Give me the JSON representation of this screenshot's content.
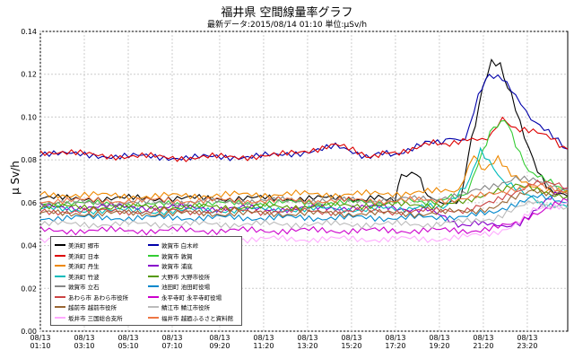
{
  "title": "福井県 空間線量率グラフ",
  "subtitle": "最新データ:2015/08/14 01:10 単位:μSv/h",
  "chart_data": {
    "type": "line",
    "title": "福井県 空間線量率グラフ",
    "ylabel": "μ Sv/h",
    "ylim": [
      0,
      0.14
    ],
    "yticks": [
      "0.00",
      "0.02",
      "0.04",
      "0.06",
      "0.08",
      "0.10",
      "0.12",
      "0.14"
    ],
    "x_ticks": [
      {
        "date": "08/13",
        "time": "01:10"
      },
      {
        "date": "08/13",
        "time": "03:10"
      },
      {
        "date": "08/13",
        "time": "05:10"
      },
      {
        "date": "08/13",
        "time": "07:10"
      },
      {
        "date": "08/13",
        "time": "09:20"
      },
      {
        "date": "08/13",
        "time": "11:20"
      },
      {
        "date": "08/13",
        "time": "13:20"
      },
      {
        "date": "08/13",
        "time": "15:20"
      },
      {
        "date": "08/13",
        "time": "17:20"
      },
      {
        "date": "08/13",
        "time": "19:20"
      },
      {
        "date": "08/13",
        "time": "21:20"
      },
      {
        "date": "08/13",
        "time": "23:20"
      }
    ],
    "x_hours": [
      1.17,
      3.17,
      5.17,
      7.17,
      9.33,
      11.33,
      13.33,
      15.33,
      17.33,
      19.33,
      21.33,
      23.33
    ],
    "x_range_hours": [
      1.17,
      25.17
    ],
    "grid": true,
    "legend_position": "bottom-left",
    "series": [
      {
        "name": "美浜町 郷市",
        "color": "#000000",
        "points": [
          [
            1.17,
            0.062
          ],
          [
            4,
            0.062
          ],
          [
            8,
            0.062
          ],
          [
            12,
            0.062
          ],
          [
            16,
            0.062
          ],
          [
            17.3,
            0.062
          ],
          [
            17.6,
            0.072
          ],
          [
            18.3,
            0.073
          ],
          [
            18.8,
            0.064
          ],
          [
            19.5,
            0.06
          ],
          [
            20.3,
            0.062
          ],
          [
            20.8,
            0.09
          ],
          [
            21.3,
            0.113
          ],
          [
            21.7,
            0.125
          ],
          [
            22.1,
            0.124
          ],
          [
            22.6,
            0.11
          ],
          [
            23.2,
            0.09
          ],
          [
            23.8,
            0.075
          ],
          [
            24.4,
            0.066
          ],
          [
            25.17,
            0.063
          ]
        ]
      },
      {
        "name": "敦賀市 白木峠",
        "color": "#0000aa",
        "points": [
          [
            1.17,
            0.083
          ],
          [
            4,
            0.082
          ],
          [
            8,
            0.081
          ],
          [
            12,
            0.082
          ],
          [
            14.6,
            0.086
          ],
          [
            16,
            0.082
          ],
          [
            17.3,
            0.083
          ],
          [
            18.5,
            0.087
          ],
          [
            19.8,
            0.09
          ],
          [
            20.5,
            0.09
          ],
          [
            21.1,
            0.11
          ],
          [
            21.6,
            0.12
          ],
          [
            22.2,
            0.119
          ],
          [
            22.8,
            0.11
          ],
          [
            23.5,
            0.1
          ],
          [
            24.3,
            0.093
          ],
          [
            25.17,
            0.085
          ]
        ]
      },
      {
        "name": "美浜町 日本",
        "color": "#dd0000",
        "points": [
          [
            1.17,
            0.084
          ],
          [
            4,
            0.082
          ],
          [
            8,
            0.081
          ],
          [
            12,
            0.082
          ],
          [
            14.6,
            0.087
          ],
          [
            16,
            0.082
          ],
          [
            17.3,
            0.083
          ],
          [
            18.5,
            0.087
          ],
          [
            19.8,
            0.088
          ],
          [
            20.6,
            0.089
          ],
          [
            21.5,
            0.09
          ],
          [
            22.2,
            0.1
          ],
          [
            22.8,
            0.095
          ],
          [
            23.6,
            0.093
          ],
          [
            24.4,
            0.09
          ],
          [
            25.17,
            0.085
          ]
        ]
      },
      {
        "name": "敦賀市 敦賀",
        "color": "#33cc33",
        "points": [
          [
            1.17,
            0.06
          ],
          [
            6,
            0.059
          ],
          [
            12,
            0.06
          ],
          [
            16,
            0.06
          ],
          [
            19.5,
            0.061
          ],
          [
            20.6,
            0.065
          ],
          [
            21.3,
            0.085
          ],
          [
            21.8,
            0.095
          ],
          [
            22.3,
            0.099
          ],
          [
            22.8,
            0.088
          ],
          [
            23.4,
            0.075
          ],
          [
            24.2,
            0.07
          ],
          [
            25.17,
            0.065
          ]
        ]
      },
      {
        "name": "美浜町 丹生",
        "color": "#ee8800",
        "points": [
          [
            1.17,
            0.064
          ],
          [
            6,
            0.063
          ],
          [
            12,
            0.064
          ],
          [
            16,
            0.064
          ],
          [
            19,
            0.065
          ],
          [
            20.2,
            0.066
          ],
          [
            20.9,
            0.082
          ],
          [
            21.4,
            0.075
          ],
          [
            22,
            0.08
          ],
          [
            22.6,
            0.073
          ],
          [
            23.3,
            0.068
          ],
          [
            24.1,
            0.065
          ],
          [
            25.17,
            0.066
          ]
        ]
      },
      {
        "name": "敦賀市 浦底",
        "color": "#8800cc",
        "points": [
          [
            1.17,
            0.058
          ],
          [
            6,
            0.058
          ],
          [
            12,
            0.057
          ],
          [
            16,
            0.058
          ],
          [
            18.8,
            0.057
          ],
          [
            20,
            0.05
          ],
          [
            21.3,
            0.05
          ],
          [
            22.4,
            0.048
          ],
          [
            23,
            0.05
          ],
          [
            24.2,
            0.062
          ],
          [
            25.17,
            0.066
          ]
        ]
      },
      {
        "name": "美浜町 竹波",
        "color": "#00bbbb",
        "points": [
          [
            1.17,
            0.057
          ],
          [
            6,
            0.056
          ],
          [
            12,
            0.057
          ],
          [
            16,
            0.057
          ],
          [
            19.5,
            0.058
          ],
          [
            20.7,
            0.07
          ],
          [
            21.2,
            0.085
          ],
          [
            21.6,
            0.08
          ],
          [
            22.2,
            0.07
          ],
          [
            23,
            0.065
          ],
          [
            24,
            0.06
          ],
          [
            25.17,
            0.058
          ]
        ]
      },
      {
        "name": "大野市 大野市役所",
        "color": "#559900",
        "points": [
          [
            1.17,
            0.058
          ],
          [
            6,
            0.058
          ],
          [
            12,
            0.058
          ],
          [
            16,
            0.059
          ],
          [
            19,
            0.059
          ],
          [
            20.6,
            0.06
          ],
          [
            21.8,
            0.066
          ],
          [
            22.8,
            0.068
          ],
          [
            23.6,
            0.066
          ],
          [
            25.17,
            0.063
          ]
        ]
      },
      {
        "name": "敦賀市 立石",
        "color": "#888888",
        "points": [
          [
            1.17,
            0.06
          ],
          [
            6,
            0.06
          ],
          [
            12,
            0.061
          ],
          [
            16,
            0.061
          ],
          [
            19,
            0.062
          ],
          [
            20.6,
            0.064
          ],
          [
            21.8,
            0.068
          ],
          [
            22.8,
            0.072
          ],
          [
            23.6,
            0.07
          ],
          [
            25.17,
            0.066
          ]
        ]
      },
      {
        "name": "池田町 池田町役場",
        "color": "#0088cc",
        "points": [
          [
            1.17,
            0.053
          ],
          [
            6,
            0.053
          ],
          [
            12,
            0.053
          ],
          [
            16,
            0.053
          ],
          [
            19,
            0.053
          ],
          [
            20.6,
            0.054
          ],
          [
            21.8,
            0.055
          ],
          [
            22.8,
            0.06
          ],
          [
            23.6,
            0.063
          ],
          [
            25.17,
            0.06
          ]
        ]
      },
      {
        "name": "あわら市 あわら市役所",
        "color": "#cc4444",
        "points": [
          [
            1.17,
            0.056
          ],
          [
            6,
            0.056
          ],
          [
            12,
            0.056
          ],
          [
            16,
            0.056
          ],
          [
            19,
            0.056
          ],
          [
            20.6,
            0.057
          ],
          [
            21.8,
            0.06
          ],
          [
            22.8,
            0.065
          ],
          [
            23.6,
            0.07
          ],
          [
            25.17,
            0.067
          ]
        ]
      },
      {
        "name": "永平寺町 永平寺町役場",
        "color": "#cc00cc",
        "points": [
          [
            1.17,
            0.047
          ],
          [
            6,
            0.047
          ],
          [
            12,
            0.047
          ],
          [
            16,
            0.047
          ],
          [
            19,
            0.047
          ],
          [
            20.6,
            0.047
          ],
          [
            21.8,
            0.048
          ],
          [
            22.8,
            0.05
          ],
          [
            23.6,
            0.055
          ],
          [
            25.17,
            0.061
          ]
        ]
      },
      {
        "name": "越前市 越前市役所",
        "color": "#996633",
        "points": [
          [
            1.17,
            0.055
          ],
          [
            6,
            0.055
          ],
          [
            12,
            0.055
          ],
          [
            16,
            0.055
          ],
          [
            19,
            0.055
          ],
          [
            20.6,
            0.056
          ],
          [
            21.8,
            0.058
          ],
          [
            22.8,
            0.062
          ],
          [
            23.6,
            0.066
          ],
          [
            25.17,
            0.064
          ]
        ]
      },
      {
        "name": "鯖江市 鯖江市役所",
        "color": "#bbbbbb",
        "points": [
          [
            1.17,
            0.05
          ],
          [
            6,
            0.05
          ],
          [
            12,
            0.05
          ],
          [
            16,
            0.05
          ],
          [
            19,
            0.05
          ],
          [
            20.6,
            0.051
          ],
          [
            21.8,
            0.053
          ],
          [
            22.8,
            0.057
          ],
          [
            23.6,
            0.06
          ],
          [
            25.17,
            0.058
          ]
        ]
      },
      {
        "name": "坂井市 三国総合支所",
        "color": "#ffaaff",
        "points": [
          [
            1.17,
            0.043
          ],
          [
            6,
            0.043
          ],
          [
            12,
            0.043
          ],
          [
            16,
            0.043
          ],
          [
            19,
            0.043
          ],
          [
            20.6,
            0.044
          ],
          [
            21.8,
            0.046
          ],
          [
            22.8,
            0.05
          ],
          [
            23.6,
            0.056
          ],
          [
            25.17,
            0.06
          ]
        ]
      },
      {
        "name": "福井市 越廼ふるさと資料館",
        "color": "#ee7744",
        "points": [
          [
            1.17,
            0.061
          ],
          [
            6,
            0.061
          ],
          [
            12,
            0.061
          ],
          [
            16,
            0.061
          ],
          [
            19,
            0.061
          ],
          [
            20.6,
            0.062
          ],
          [
            21.8,
            0.064
          ],
          [
            22.8,
            0.067
          ],
          [
            23.6,
            0.068
          ],
          [
            25.17,
            0.065
          ]
        ]
      }
    ]
  }
}
